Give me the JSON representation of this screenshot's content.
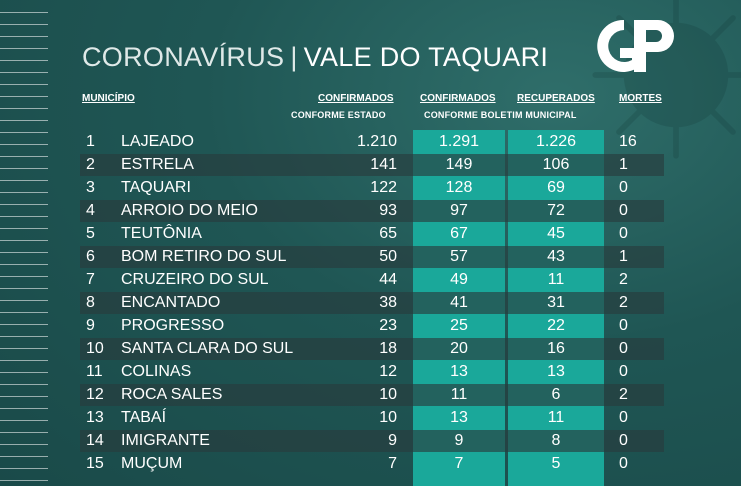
{
  "header": {
    "title_left": "CORONAVÍRUS",
    "separator": "|",
    "title_right": "VALE DO TAQUARI",
    "logo_text": "GP"
  },
  "columns": {
    "municipio": "MUNICÍPIO",
    "confirmados_estado": "CONFIRMADOS",
    "confirmados_estado_sub": "CONFORME ESTADO",
    "confirmados_boletim": "CONFIRMADOS",
    "recuperados": "RECUPERADOS",
    "boletim_sub": "CONFORME BOLETIM MUNICIPAL",
    "mortes": "MORTES"
  },
  "colors": {
    "background": "#1f5654",
    "highlight_column": "#1aa89a",
    "row_shade": "#283c3e",
    "text": "#ffffff"
  },
  "rows": [
    {
      "n": "1",
      "name": "LAJEADO",
      "estado": "1.210",
      "boletim": "1.291",
      "recuperados": "1.226",
      "mortes": "16"
    },
    {
      "n": "2",
      "name": "ESTRELA",
      "estado": "141",
      "boletim": "149",
      "recuperados": "106",
      "mortes": "1"
    },
    {
      "n": "3",
      "name": "TAQUARI",
      "estado": "122",
      "boletim": "128",
      "recuperados": "69",
      "mortes": "0"
    },
    {
      "n": "4",
      "name": "ARROIO DO MEIO",
      "estado": "93",
      "boletim": "97",
      "recuperados": "72",
      "mortes": "0"
    },
    {
      "n": "5",
      "name": "TEUTÔNIA",
      "estado": "65",
      "boletim": "67",
      "recuperados": "45",
      "mortes": "0"
    },
    {
      "n": "6",
      "name": "BOM RETIRO DO SUL",
      "estado": "50",
      "boletim": "57",
      "recuperados": "43",
      "mortes": "1"
    },
    {
      "n": "7",
      "name": "CRUZEIRO DO SUL",
      "estado": "44",
      "boletim": "49",
      "recuperados": "11",
      "mortes": "2"
    },
    {
      "n": "8",
      "name": "ENCANTADO",
      "estado": "38",
      "boletim": "41",
      "recuperados": "31",
      "mortes": "2"
    },
    {
      "n": "9",
      "name": "PROGRESSO",
      "estado": "23",
      "boletim": "25",
      "recuperados": "22",
      "mortes": "0"
    },
    {
      "n": "10",
      "name": "SANTA CLARA DO SUL",
      "estado": "18",
      "boletim": "20",
      "recuperados": "16",
      "mortes": "0"
    },
    {
      "n": "11",
      "name": "COLINAS",
      "estado": "12",
      "boletim": "13",
      "recuperados": "13",
      "mortes": "0"
    },
    {
      "n": "12",
      "name": "ROCA SALES",
      "estado": "10",
      "boletim": "11",
      "recuperados": "6",
      "mortes": "2"
    },
    {
      "n": "13",
      "name": "TABAÍ",
      "estado": "10",
      "boletim": "13",
      "recuperados": "11",
      "mortes": "0"
    },
    {
      "n": "14",
      "name": "IMIGRANTE",
      "estado": "9",
      "boletim": "9",
      "recuperados": "8",
      "mortes": "0"
    },
    {
      "n": "15",
      "name": "MUÇUM",
      "estado": "7",
      "boletim": "7",
      "recuperados": "5",
      "mortes": "0"
    }
  ]
}
